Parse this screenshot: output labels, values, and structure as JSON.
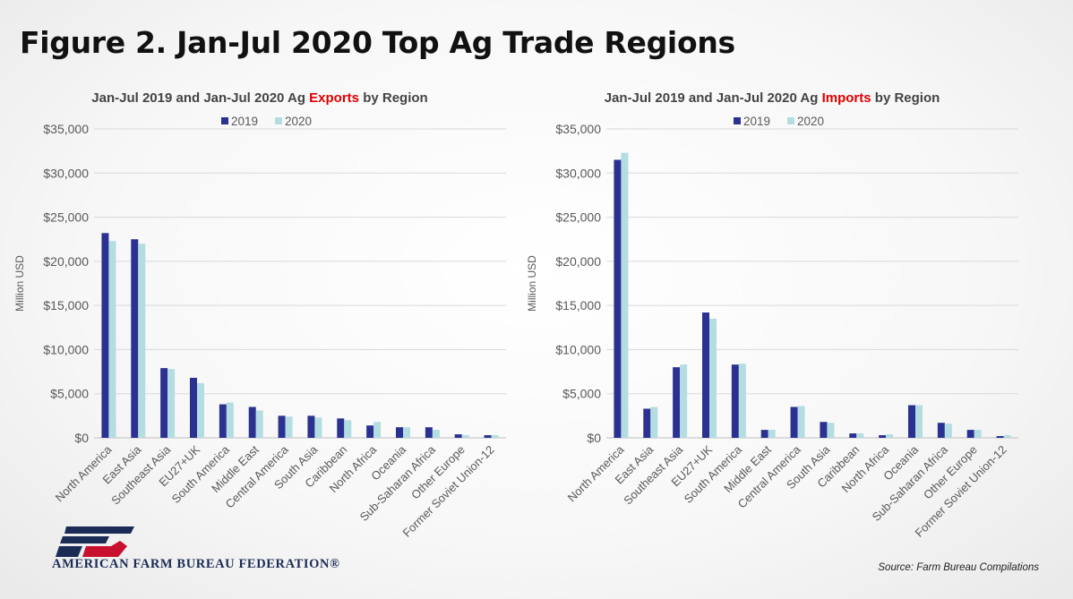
{
  "figure_title": "Figure 2. Jan-Jul 2020 Top Ag Trade Regions",
  "source": "Source: Farm Bureau Compilations",
  "org_name": "AMERICAN FARM BUREAU FEDERATION®",
  "colors": {
    "series_2019": "#2b3190",
    "series_2020": "#b4dde2",
    "highlight": "#e00000",
    "gridline": "#d9d9d9"
  },
  "chart_data": [
    {
      "type": "bar",
      "title_parts": {
        "before": "Jan-Jul 2019 and Jan-Jul 2020 Ag ",
        "highlight": "Exports",
        "after": " by Region"
      },
      "ylabel": "Million USD",
      "ylim": [
        0,
        35000
      ],
      "yticks": [
        "$0",
        "$5,000",
        "$10,000",
        "$15,000",
        "$20,000",
        "$25,000",
        "$30,000",
        "$35,000"
      ],
      "legend": "top-center",
      "categories": [
        "North America",
        "East Asia",
        "Southeast Asia",
        "EU27+UK",
        "South America",
        "Middle East",
        "Central America",
        "South Asia",
        "Caribbean",
        "North Africa",
        "Oceania",
        "Sub-Saharan Africa",
        "Other Europe",
        "Former Soviet Union-12"
      ],
      "series": [
        {
          "name": "2019",
          "values": [
            23200,
            22500,
            7900,
            6800,
            3800,
            3500,
            2500,
            2500,
            2200,
            1400,
            1200,
            1200,
            400,
            300
          ]
        },
        {
          "name": "2020",
          "values": [
            22300,
            22000,
            7800,
            6200,
            4000,
            3100,
            2400,
            2300,
            2000,
            1800,
            1200,
            900,
            300,
            300
          ]
        }
      ]
    },
    {
      "type": "bar",
      "title_parts": {
        "before": "Jan-Jul 2019 and Jan-Jul 2020 Ag ",
        "highlight": "Imports",
        "after": " by Region"
      },
      "ylabel": "Million USD",
      "ylim": [
        0,
        35000
      ],
      "yticks": [
        "$0",
        "$5,000",
        "$10,000",
        "$15,000",
        "$20,000",
        "$25,000",
        "$30,000",
        "$35,000"
      ],
      "legend": "top-center",
      "categories": [
        "North America",
        "East Asia",
        "Southeast Asia",
        "EU27+UK",
        "South America",
        "Middle East",
        "Central America",
        "South Asia",
        "Caribbean",
        "North Africa",
        "Oceania",
        "Sub-Saharan Africa",
        "Other Europe",
        "Former Soviet Union-12"
      ],
      "series": [
        {
          "name": "2019",
          "values": [
            31500,
            3300,
            8000,
            14200,
            8300,
            900,
            3500,
            1800,
            500,
            300,
            3700,
            1700,
            900,
            200
          ]
        },
        {
          "name": "2020",
          "values": [
            32300,
            3500,
            8300,
            13500,
            8400,
            900,
            3600,
            1700,
            500,
            400,
            3700,
            1600,
            900,
            300
          ]
        }
      ]
    }
  ]
}
